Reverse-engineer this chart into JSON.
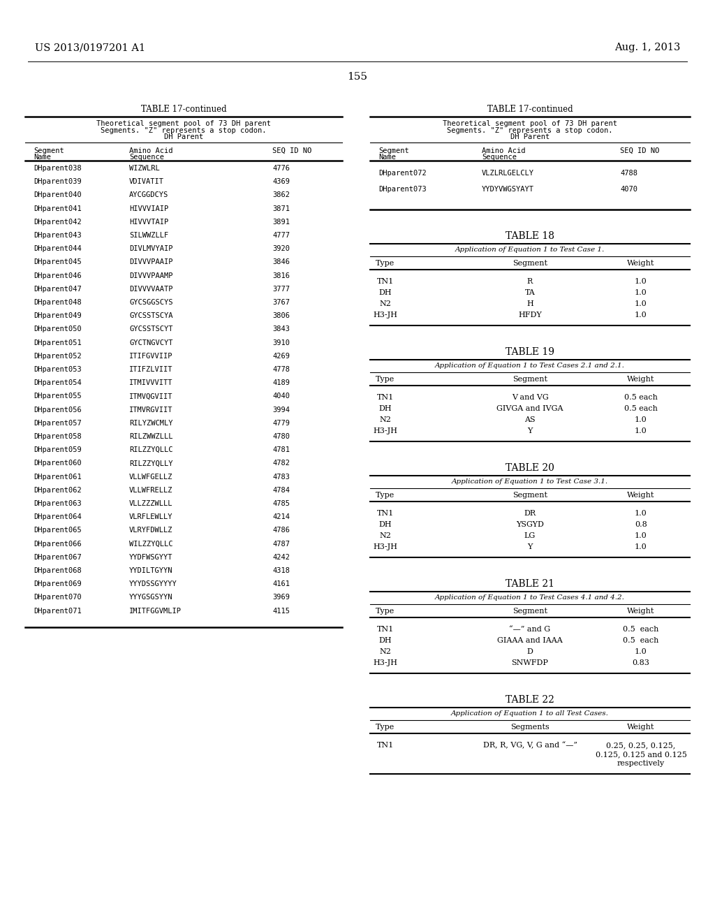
{
  "page_number": "155",
  "left_header": "US 2013/0197201 A1",
  "right_header": "Aug. 1, 2013",
  "background_color": "#ffffff",
  "left_table": {
    "title": "TABLE 17-continued",
    "header_line1": "Theoretical segment pool of 73 DH parent",
    "header_line2": "Segments. \"Z\" represents a stop codon.",
    "header_line3": "DH Parent",
    "col_headers": [
      "Segment\nName",
      "Amino Acid\nSequence",
      "SEQ ID NO"
    ],
    "rows": [
      [
        "DHparent038",
        "WIZWLRL",
        "4776"
      ],
      [
        "DHparent039",
        "VDIVATIT",
        "4369"
      ],
      [
        "DHparent040",
        "AYCGGDCYS",
        "3862"
      ],
      [
        "DHparent041",
        "HIVVVIAIP",
        "3871"
      ],
      [
        "DHparent042",
        "HIVVVTAIP",
        "3891"
      ],
      [
        "DHparent043",
        "SILWWZLLF",
        "4777"
      ],
      [
        "DHparent044",
        "DIVLMVYAIP",
        "3920"
      ],
      [
        "DHparent045",
        "DIVVVPAAIP",
        "3846"
      ],
      [
        "DHparent046",
        "DIVVVPAAMP",
        "3816"
      ],
      [
        "DHparent047",
        "DIVVVVAATP",
        "3777"
      ],
      [
        "DHparent048",
        "GYCSGGSCYS",
        "3767"
      ],
      [
        "DHparent049",
        "GYCSSTSCYA",
        "3806"
      ],
      [
        "DHparent050",
        "GYCSSTSCYT",
        "3843"
      ],
      [
        "DHparent051",
        "GYCTNGVCYT",
        "3910"
      ],
      [
        "DHparent052",
        "ITIFGVVIIP",
        "4269"
      ],
      [
        "DHparent053",
        "ITIFZLVIIT",
        "4778"
      ],
      [
        "DHparent054",
        "ITMIVVVITT",
        "4189"
      ],
      [
        "DHparent055",
        "ITMVQGVIIT",
        "4040"
      ],
      [
        "DHparent056",
        "ITMVRGVIIT",
        "3994"
      ],
      [
        "DHparent057",
        "RILYZWCMLY",
        "4779"
      ],
      [
        "DHparent058",
        "RILZWWZLLL",
        "4780"
      ],
      [
        "DHparent059",
        "RILZZYQLLC",
        "4781"
      ],
      [
        "DHparent060",
        "RILZZYQLLY",
        "4782"
      ],
      [
        "DHparent061",
        "VLLWFGELLZ",
        "4783"
      ],
      [
        "DHparent062",
        "VLLWFRELLZ",
        "4784"
      ],
      [
        "DHparent063",
        "VLLZZZWLLL",
        "4785"
      ],
      [
        "DHparent064",
        "VLRFLEWLLY",
        "4214"
      ],
      [
        "DHparent065",
        "VLRYFDWLLZ",
        "4786"
      ],
      [
        "DHparent066",
        "WILZZYQLLC",
        "4787"
      ],
      [
        "DHparent067",
        "YYDFWSGYYT",
        "4242"
      ],
      [
        "DHparent068",
        "YYDILTGYYN",
        "4318"
      ],
      [
        "DHparent069",
        "YYYDSSGYYYY",
        "4161"
      ],
      [
        "DHparent070",
        "YYYGSGSYYN",
        "3969"
      ],
      [
        "DHparent071",
        "IMITFGGVMLIP",
        "4115"
      ]
    ]
  },
  "right_top_table": {
    "title": "TABLE 17-continued",
    "header_line1": "Theoretical segment pool of 73 DH parent",
    "header_line2": "Segments. \"Z\" represents a stop codon.",
    "header_line3": "DH Parent",
    "col_headers": [
      "Segment\nName",
      "Amino Acid\nSequence",
      "SEQ ID NO"
    ],
    "rows": [
      [
        "DHparent072",
        "VLZLRLGELCLY",
        "4788"
      ],
      [
        "DHparent073",
        "YYDYVWGSYAYT",
        "4070"
      ]
    ]
  },
  "table18": {
    "title": "TABLE 18",
    "subtitle": "Application of Equation 1 to Test Case 1.",
    "col_headers": [
      "Type",
      "Segment",
      "Weight"
    ],
    "rows": [
      [
        "TN1",
        "R",
        "1.0"
      ],
      [
        "DH",
        "TA",
        "1.0"
      ],
      [
        "N2",
        "H",
        "1.0"
      ],
      [
        "H3-JH",
        "HFDY",
        "1.0"
      ]
    ]
  },
  "table19": {
    "title": "TABLE 19",
    "subtitle": "Application of Equation 1 to Test Cases 2.1 and 2.1.",
    "col_headers": [
      "Type",
      "Segment",
      "Weight"
    ],
    "rows": [
      [
        "TN1",
        "V and VG",
        "0.5 each"
      ],
      [
        "DH",
        "GIVGA and IVGA",
        "0.5 each"
      ],
      [
        "N2",
        "AS",
        "1.0"
      ],
      [
        "H3-JH",
        "Y",
        "1.0"
      ]
    ]
  },
  "table20": {
    "title": "TABLE 20",
    "subtitle": "Application of Equation 1 to Test Case 3.1.",
    "col_headers": [
      "Type",
      "Segment",
      "Weight"
    ],
    "rows": [
      [
        "TN1",
        "DR",
        "1.0"
      ],
      [
        "DH",
        "YSGYD",
        "0.8"
      ],
      [
        "N2",
        "LG",
        "1.0"
      ],
      [
        "H3-JH",
        "Y",
        "1.0"
      ]
    ]
  },
  "table21": {
    "title": "TABLE 21",
    "subtitle": "Application of Equation 1 to Test Cases 4.1 and 4.2.",
    "col_headers": [
      "Type",
      "Segment",
      "Weight"
    ],
    "rows": [
      [
        "TN1",
        "“—” and G",
        "0.5  each"
      ],
      [
        "DH",
        "GIAAA and IAAA",
        "0.5  each"
      ],
      [
        "N2",
        "D",
        "1.0"
      ],
      [
        "H3-JH",
        "SNWFDP",
        "0.83"
      ]
    ]
  },
  "table22": {
    "title": "TABLE 22",
    "subtitle": "Application of Equation 1 to all Test Cases.",
    "col_headers": [
      "Type",
      "Segments",
      "Weight"
    ],
    "rows": [
      [
        "TN1",
        "DR, R, VG, V, G and “—”",
        "0.25, 0.25, 0.125,\n0.125, 0.125 and 0.125\nrespectively"
      ]
    ]
  }
}
